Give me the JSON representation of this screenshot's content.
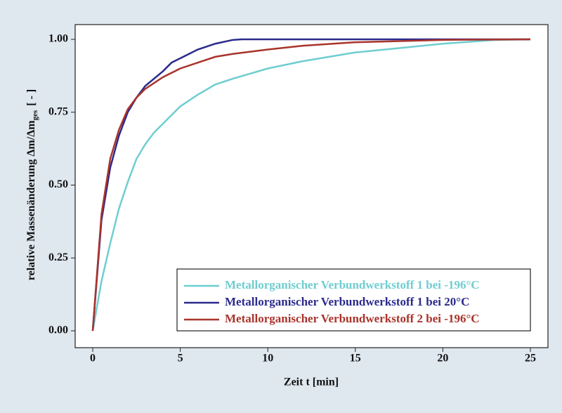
{
  "chart_data": {
    "type": "line",
    "xlabel": "Zeit t [min]",
    "ylabel": {
      "main": "relative Massenänderung Δm/Δm",
      "sub": "ges",
      "suffix": "[ - ]"
    },
    "xlim": [
      0,
      25
    ],
    "xticks": [
      0,
      5,
      10,
      15,
      20,
      25
    ],
    "ylim": [
      0,
      1
    ],
    "yticks": [
      {
        "value": 0,
        "label": "0.00"
      },
      {
        "value": 0.25,
        "label": "0.25"
      },
      {
        "value": 0.5,
        "label": "0.50"
      },
      {
        "value": 0.75,
        "label": "0.75"
      },
      {
        "value": 1,
        "label": "1.00"
      }
    ],
    "legend": "lower right",
    "series": [
      {
        "name": "Metallorganischer Verbundwerkstoff 1 bei -196°C",
        "color": "#6fcdd0",
        "x": [
          0,
          0.5,
          1,
          1.5,
          2,
          2.5,
          3,
          3.5,
          4,
          5,
          6,
          7,
          8,
          10,
          12,
          15,
          20,
          23,
          25
        ],
        "values": [
          0,
          0.17,
          0.3,
          0.42,
          0.51,
          0.59,
          0.64,
          0.68,
          0.71,
          0.77,
          0.81,
          0.845,
          0.865,
          0.9,
          0.925,
          0.955,
          0.985,
          0.998,
          1
        ]
      },
      {
        "name": "Metallorganischer Verbundwerkstoff 1 bei 20°C",
        "color": "#2b2a8c",
        "x": [
          0,
          0.5,
          1,
          1.5,
          2,
          2.5,
          3,
          4,
          4.5,
          5,
          6,
          7,
          8,
          8.5,
          10,
          15,
          20,
          25
        ],
        "values": [
          0,
          0.38,
          0.56,
          0.67,
          0.75,
          0.8,
          0.84,
          0.89,
          0.92,
          0.935,
          0.965,
          0.985,
          0.998,
          1,
          1,
          1,
          1,
          1
        ]
      },
      {
        "name": "Metallorganischer Verbundwerkstoff 2 bei -196°C",
        "color": "#a9342b",
        "x": [
          0,
          0.5,
          1,
          1.5,
          2,
          2.5,
          3,
          4,
          5,
          6,
          7,
          8,
          10,
          12,
          15,
          20,
          25
        ],
        "values": [
          0,
          0.4,
          0.59,
          0.69,
          0.76,
          0.8,
          0.83,
          0.87,
          0.9,
          0.92,
          0.94,
          0.95,
          0.965,
          0.978,
          0.99,
          0.998,
          1
        ]
      }
    ]
  }
}
